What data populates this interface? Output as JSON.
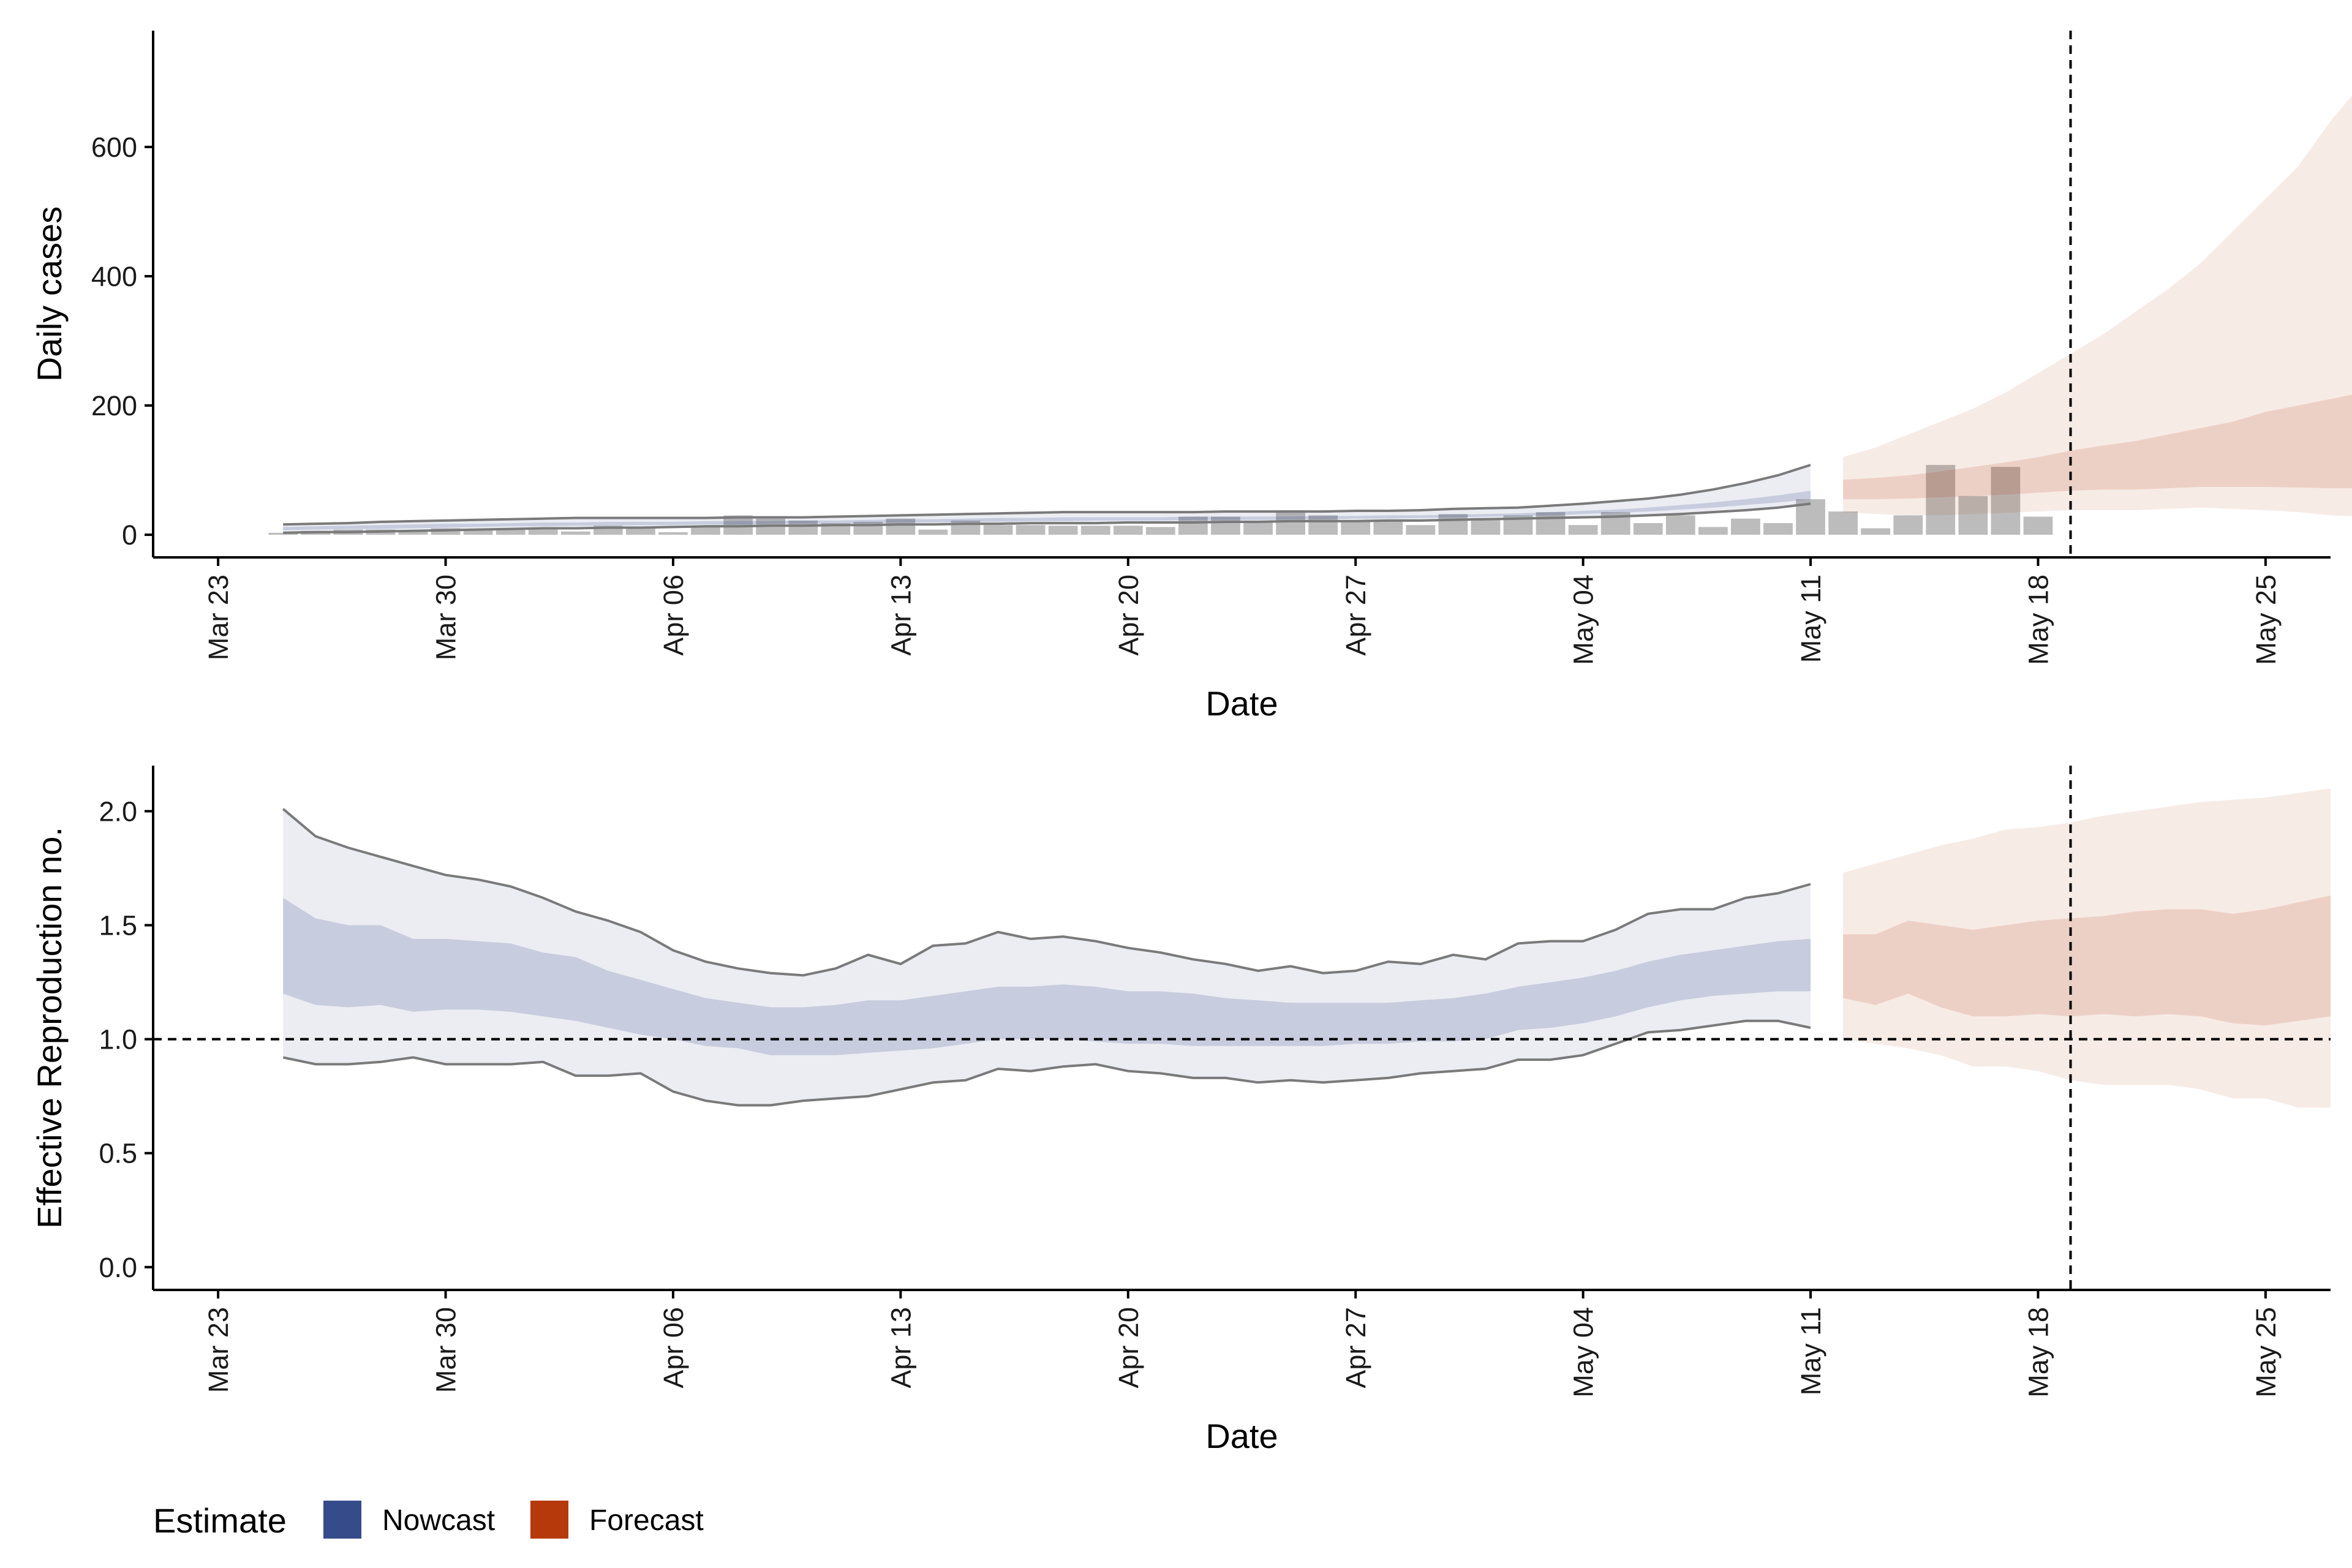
{
  "chart_data": [
    {
      "type": "area",
      "xlabel": "Date",
      "ylabel": "Daily cases",
      "ylim": [
        -35,
        780
      ],
      "yticks": [
        0,
        200,
        400,
        600
      ],
      "xlim": [
        "2020-03-21",
        "2020-05-27"
      ],
      "xticks": [
        {
          "date": "2020-03-23",
          "label": "Mar 23"
        },
        {
          "date": "2020-03-30",
          "label": "Mar 30"
        },
        {
          "date": "2020-04-06",
          "label": "Apr 06"
        },
        {
          "date": "2020-04-13",
          "label": "Apr 13"
        },
        {
          "date": "2020-04-20",
          "label": "Apr 20"
        },
        {
          "date": "2020-04-27",
          "label": "Apr 27"
        },
        {
          "date": "2020-05-04",
          "label": "May 04"
        },
        {
          "date": "2020-05-11",
          "label": "May 11"
        },
        {
          "date": "2020-05-18",
          "label": "May 18"
        },
        {
          "date": "2020-05-25",
          "label": "May 25"
        }
      ],
      "vline_date": "2020-05-19",
      "bars": {
        "start_date": "2020-03-25",
        "values": [
          3,
          6,
          8,
          8,
          6,
          10,
          8,
          8,
          8,
          5,
          14,
          12,
          4,
          12,
          30,
          25,
          22,
          18,
          20,
          25,
          8,
          22,
          15,
          15,
          14,
          14,
          14,
          12,
          28,
          28,
          20,
          38,
          30,
          22,
          22,
          15,
          32,
          26,
          30,
          35,
          15,
          35,
          18,
          30,
          12,
          25,
          18,
          55,
          36,
          10,
          30,
          108,
          60,
          105,
          28
        ]
      },
      "series": [
        {
          "name": "Nowcast",
          "start_date": "2020-03-25",
          "outer_lower": [
            3,
            4,
            4,
            5,
            6,
            7,
            8,
            9,
            10,
            10,
            11,
            11,
            12,
            13,
            13,
            14,
            14,
            15,
            15,
            16,
            16,
            17,
            17,
            18,
            18,
            18,
            19,
            19,
            19,
            20,
            20,
            21,
            21,
            21,
            22,
            22,
            23,
            24,
            25,
            26,
            27,
            28,
            30,
            32,
            35,
            38,
            42,
            48
          ],
          "outer_upper": [
            16,
            17,
            18,
            20,
            21,
            22,
            23,
            24,
            25,
            26,
            26,
            26,
            26,
            26,
            27,
            27,
            27,
            28,
            29,
            30,
            31,
            32,
            33,
            34,
            35,
            35,
            35,
            35,
            35,
            36,
            36,
            36,
            36,
            37,
            37,
            38,
            40,
            41,
            42,
            45,
            48,
            52,
            56,
            62,
            70,
            80,
            92,
            108
          ],
          "inner_lower": [
            7,
            8,
            9,
            9,
            10,
            11,
            12,
            13,
            13,
            14,
            14,
            15,
            15,
            16,
            16,
            17,
            17,
            18,
            18,
            19,
            19,
            20,
            20,
            21,
            21,
            22,
            22,
            22,
            23,
            23,
            23,
            24,
            24,
            25,
            25,
            26,
            27,
            28,
            29,
            30,
            32,
            34,
            36,
            39,
            42,
            46,
            50,
            55
          ],
          "inner_upper": [
            12,
            13,
            14,
            15,
            16,
            17,
            17,
            18,
            19,
            19,
            20,
            20,
            20,
            21,
            21,
            21,
            22,
            22,
            23,
            24,
            24,
            25,
            26,
            26,
            27,
            27,
            27,
            27,
            28,
            28,
            28,
            28,
            29,
            29,
            30,
            30,
            31,
            32,
            33,
            35,
            37,
            39,
            42,
            46,
            50,
            55,
            61,
            68
          ]
        },
        {
          "name": "Forecast",
          "start_date": "2020-05-12",
          "outer_lower": [
            35,
            32,
            30,
            30,
            32,
            34,
            36,
            38,
            38,
            38,
            40,
            42,
            40,
            38,
            35,
            30,
            28,
            28,
            22
          ],
          "outer_upper": [
            120,
            135,
            155,
            175,
            195,
            220,
            250,
            280,
            310,
            345,
            380,
            420,
            470,
            520,
            570,
            640,
            700,
            745,
            745
          ],
          "inner_lower": [
            55,
            55,
            56,
            58,
            60,
            62,
            65,
            68,
            70,
            70,
            72,
            74,
            74,
            74,
            73,
            72,
            72,
            73,
            75
          ],
          "inner_upper": [
            85,
            88,
            92,
            98,
            105,
            112,
            120,
            130,
            138,
            145,
            155,
            165,
            175,
            190,
            200,
            210,
            220,
            235,
            245
          ]
        }
      ]
    },
    {
      "type": "area",
      "xlabel": "Date",
      "ylabel": "Effective Reproduction no.",
      "ylim": [
        -0.1,
        2.2
      ],
      "yticks": [
        0.0,
        0.5,
        1.0,
        1.5,
        2.0
      ],
      "ytick_labels": [
        "0.0",
        "0.5",
        "1.0",
        "1.5",
        "2.0"
      ],
      "xlim": [
        "2020-03-21",
        "2020-05-27"
      ],
      "xticks": [
        {
          "date": "2020-03-23",
          "label": "Mar 23"
        },
        {
          "date": "2020-03-30",
          "label": "Mar 30"
        },
        {
          "date": "2020-04-06",
          "label": "Apr 06"
        },
        {
          "date": "2020-04-13",
          "label": "Apr 13"
        },
        {
          "date": "2020-04-20",
          "label": "Apr 20"
        },
        {
          "date": "2020-04-27",
          "label": "Apr 27"
        },
        {
          "date": "2020-05-04",
          "label": "May 04"
        },
        {
          "date": "2020-05-11",
          "label": "May 11"
        },
        {
          "date": "2020-05-18",
          "label": "May 18"
        },
        {
          "date": "2020-05-25",
          "label": "May 25"
        }
      ],
      "hline": 1.0,
      "vline_date": "2020-05-19",
      "series": [
        {
          "name": "Nowcast",
          "start_date": "2020-03-25",
          "outer_lower": [
            0.92,
            0.89,
            0.89,
            0.9,
            0.92,
            0.89,
            0.89,
            0.89,
            0.9,
            0.84,
            0.84,
            0.85,
            0.77,
            0.73,
            0.71,
            0.71,
            0.73,
            0.74,
            0.75,
            0.78,
            0.81,
            0.82,
            0.87,
            0.86,
            0.88,
            0.89,
            0.86,
            0.85,
            0.83,
            0.83,
            0.81,
            0.82,
            0.81,
            0.82,
            0.83,
            0.85,
            0.86,
            0.87,
            0.91,
            0.91,
            0.93,
            0.98,
            1.03,
            1.04,
            1.06,
            1.08,
            1.08,
            1.05
          ],
          "outer_upper": [
            2.01,
            1.89,
            1.84,
            1.8,
            1.76,
            1.72,
            1.7,
            1.67,
            1.62,
            1.56,
            1.52,
            1.47,
            1.39,
            1.34,
            1.31,
            1.29,
            1.28,
            1.31,
            1.37,
            1.33,
            1.41,
            1.42,
            1.47,
            1.44,
            1.45,
            1.43,
            1.4,
            1.38,
            1.35,
            1.33,
            1.3,
            1.32,
            1.29,
            1.3,
            1.34,
            1.33,
            1.37,
            1.35,
            1.42,
            1.43,
            1.43,
            1.48,
            1.55,
            1.57,
            1.57,
            1.62,
            1.64,
            1.68
          ],
          "inner_lower": [
            1.2,
            1.15,
            1.14,
            1.15,
            1.12,
            1.13,
            1.13,
            1.12,
            1.1,
            1.08,
            1.05,
            1.02,
            1.0,
            0.97,
            0.96,
            0.93,
            0.93,
            0.93,
            0.94,
            0.95,
            0.96,
            0.98,
            1.0,
            1.0,
            1.0,
            0.99,
            0.98,
            0.98,
            0.97,
            0.97,
            0.97,
            0.97,
            0.97,
            0.98,
            0.98,
            0.99,
            0.99,
            1.0,
            1.04,
            1.05,
            1.07,
            1.1,
            1.14,
            1.17,
            1.19,
            1.2,
            1.21,
            1.21
          ],
          "inner_upper": [
            1.62,
            1.53,
            1.5,
            1.5,
            1.44,
            1.44,
            1.43,
            1.42,
            1.38,
            1.36,
            1.3,
            1.26,
            1.22,
            1.18,
            1.16,
            1.14,
            1.14,
            1.15,
            1.17,
            1.17,
            1.19,
            1.21,
            1.23,
            1.23,
            1.24,
            1.23,
            1.21,
            1.21,
            1.2,
            1.18,
            1.17,
            1.16,
            1.16,
            1.16,
            1.16,
            1.17,
            1.18,
            1.2,
            1.23,
            1.25,
            1.27,
            1.3,
            1.34,
            1.37,
            1.39,
            1.41,
            1.43,
            1.44
          ]
        },
        {
          "name": "Forecast",
          "start_date": "2020-05-12",
          "outer_lower": [
            1.0,
            0.98,
            0.96,
            0.93,
            0.88,
            0.88,
            0.86,
            0.82,
            0.8,
            0.8,
            0.8,
            0.78,
            0.74,
            0.74,
            0.7,
            0.7
          ],
          "outer_upper": [
            1.73,
            1.77,
            1.81,
            1.85,
            1.88,
            1.92,
            1.93,
            1.95,
            1.98,
            2.0,
            2.02,
            2.04,
            2.05,
            2.06,
            2.08,
            2.1
          ],
          "inner_lower": [
            1.18,
            1.15,
            1.2,
            1.14,
            1.1,
            1.1,
            1.11,
            1.1,
            1.11,
            1.1,
            1.11,
            1.1,
            1.07,
            1.06,
            1.08,
            1.1
          ],
          "inner_upper": [
            1.46,
            1.46,
            1.52,
            1.5,
            1.48,
            1.5,
            1.52,
            1.53,
            1.54,
            1.56,
            1.57,
            1.57,
            1.55,
            1.57,
            1.6,
            1.63
          ]
        }
      ]
    }
  ],
  "legend": {
    "title": "Estimate",
    "items": [
      {
        "label": "Nowcast",
        "color": "#364b8a"
      },
      {
        "label": "Forecast",
        "color": "#b5390b"
      }
    ]
  },
  "colors": {
    "nowcast": "#364b8a",
    "forecast": "#b5390b",
    "bars": "#b5b5b5",
    "outer_line": "#7a7a7a",
    "axis": "#000000"
  }
}
